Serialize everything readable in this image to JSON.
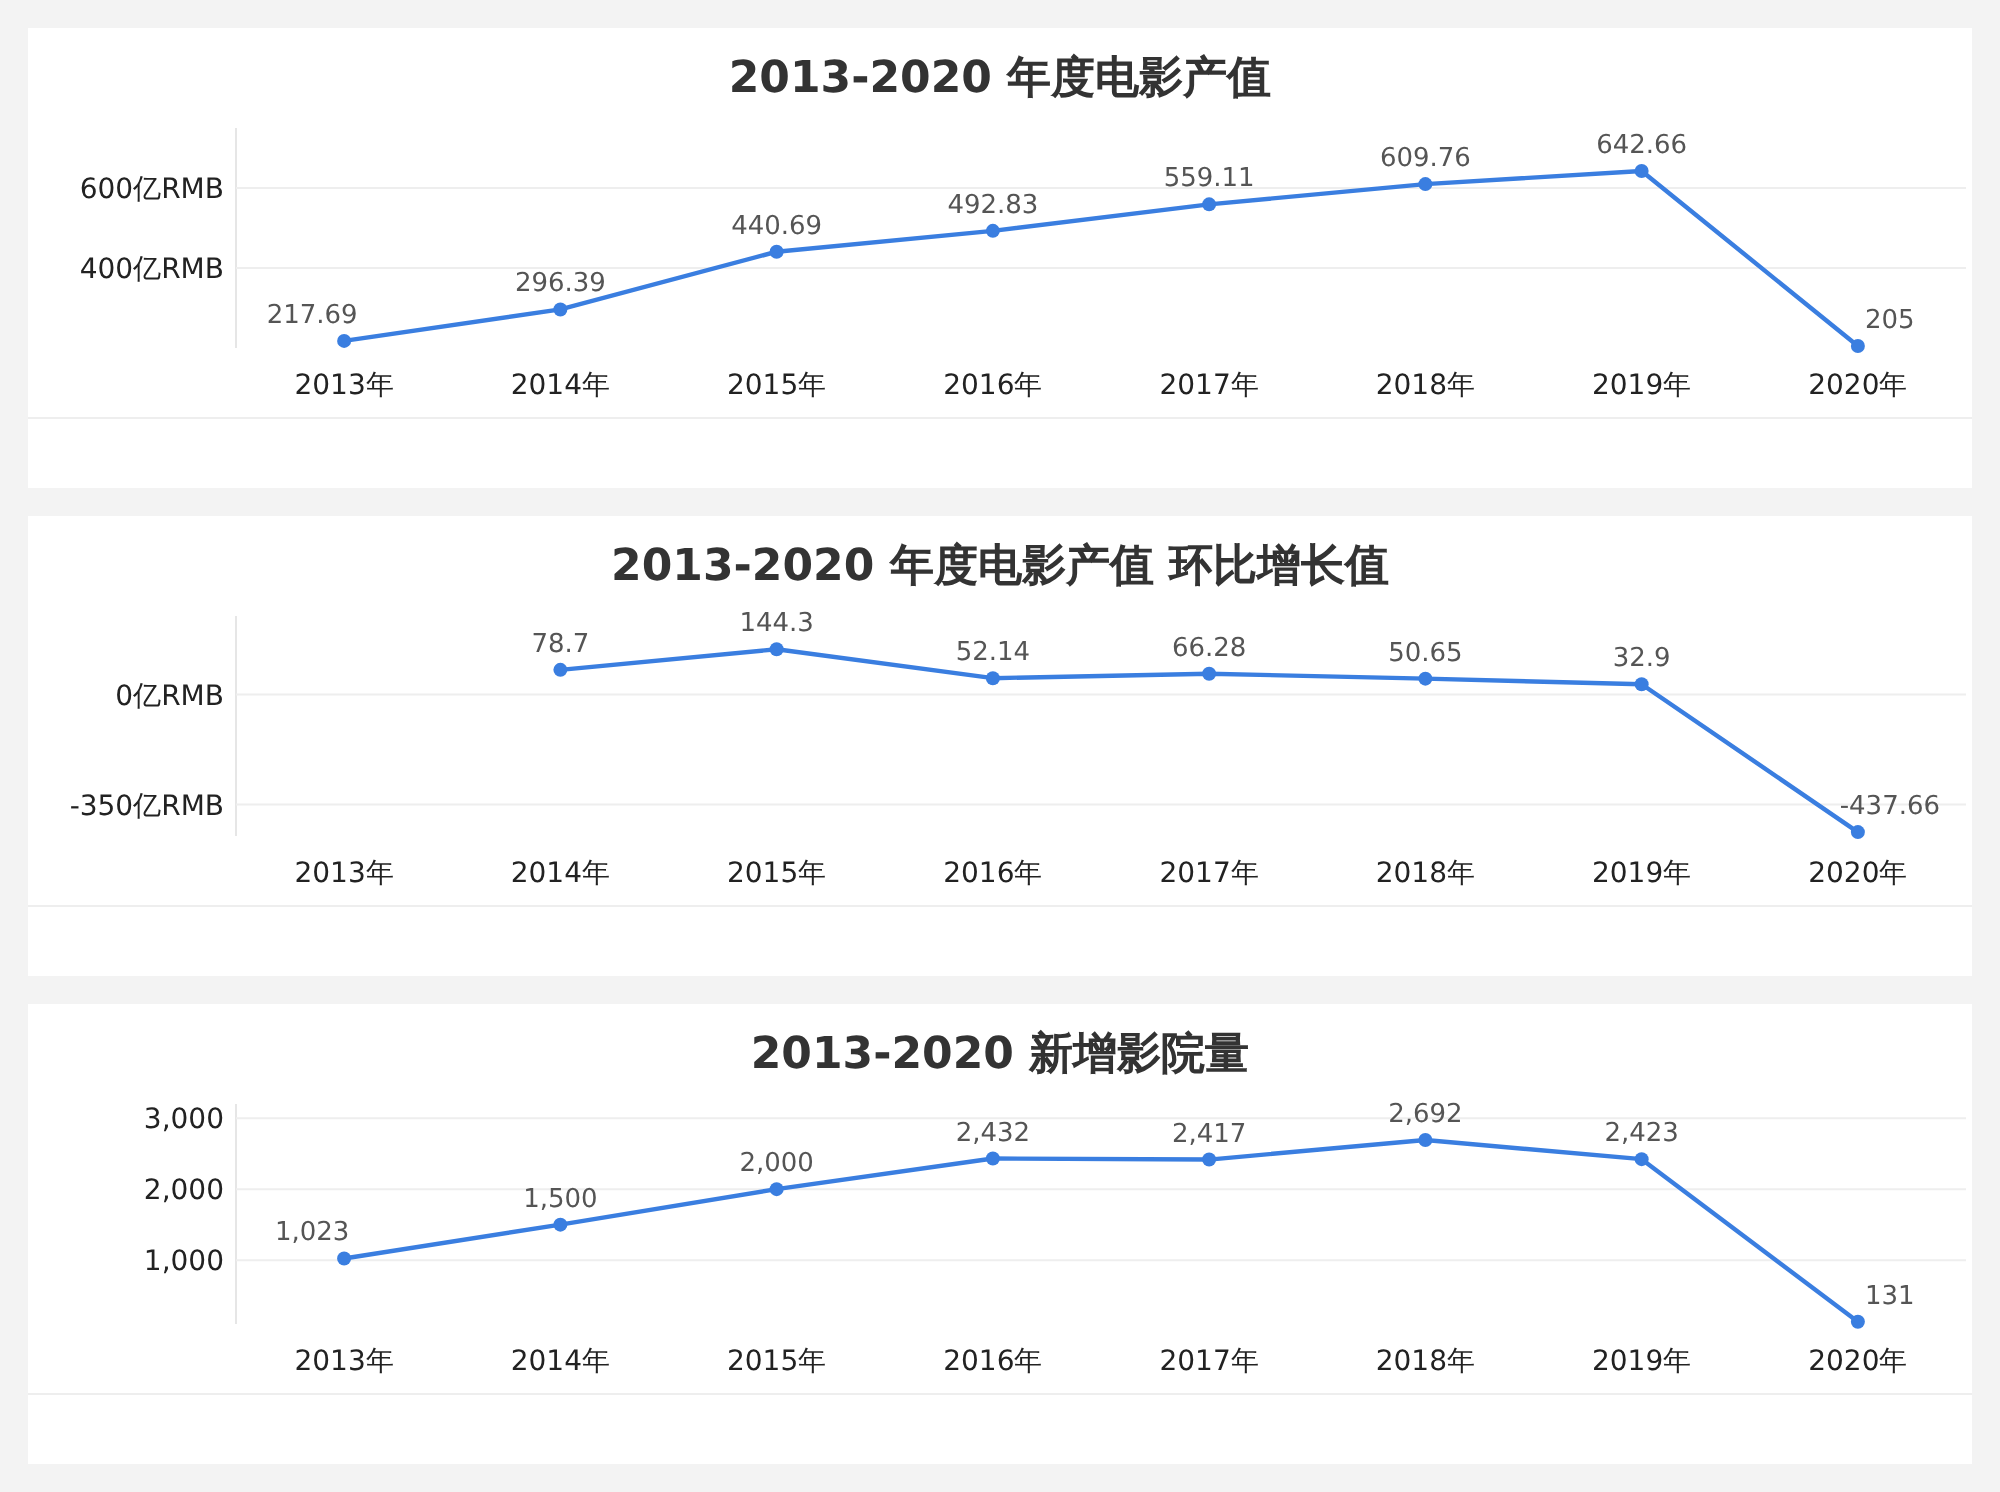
{
  "chart_data": [
    {
      "type": "line",
      "title": "2013-2020 年度电影产值",
      "categories": [
        "2013年",
        "2014年",
        "2015年",
        "2016年",
        "2017年",
        "2018年",
        "2019年",
        "2020年"
      ],
      "series": [
        {
          "color": "#3a7ee0",
          "values": [
            217.69,
            296.39,
            440.69,
            492.83,
            559.11,
            609.76,
            642.66,
            205
          ]
        }
      ],
      "ylim": [
        200,
        750
      ],
      "yticks": [
        {
          "value": 400,
          "label": "400亿RMB"
        },
        {
          "value": 600,
          "label": "600亿RMB"
        }
      ],
      "grid": "y",
      "marker": "circle",
      "data_labels": true
    },
    {
      "type": "line",
      "title": "2013-2020 年度电影产值 环比增长值",
      "categories": [
        "2013年",
        "2014年",
        "2015年",
        "2016年",
        "2017年",
        "2018年",
        "2019年",
        "2020年"
      ],
      "series": [
        {
          "color": "#3a7ee0",
          "values": [
            null,
            78.7,
            144.3,
            52.14,
            66.28,
            50.65,
            32.9,
            -437.66
          ]
        }
      ],
      "ylim": [
        -450,
        250
      ],
      "yticks": [
        {
          "value": -350,
          "label": "-350亿RMB"
        },
        {
          "value": 0,
          "label": "0亿RMB"
        }
      ],
      "grid": "y",
      "marker": "circle",
      "data_labels": true
    },
    {
      "type": "line",
      "title": "2013-2020 新增影院量",
      "categories": [
        "2013年",
        "2014年",
        "2015年",
        "2016年",
        "2017年",
        "2018年",
        "2019年",
        "2020年"
      ],
      "series": [
        {
          "color": "#3a7ee0",
          "values": [
            1023,
            1500,
            2000,
            2432,
            2417,
            2692,
            2423,
            131
          ],
          "value_labels": [
            "1,023",
            "1,500",
            "2,000",
            "2,432",
            "2,417",
            "2,692",
            "2,423",
            "131"
          ]
        }
      ],
      "ylim": [
        100,
        3200
      ],
      "yticks": [
        {
          "value": 1000,
          "label": "1,000"
        },
        {
          "value": 2000,
          "label": "2,000"
        },
        {
          "value": 3000,
          "label": "3,000"
        }
      ],
      "grid": "y",
      "marker": "circle"
    }
  ]
}
